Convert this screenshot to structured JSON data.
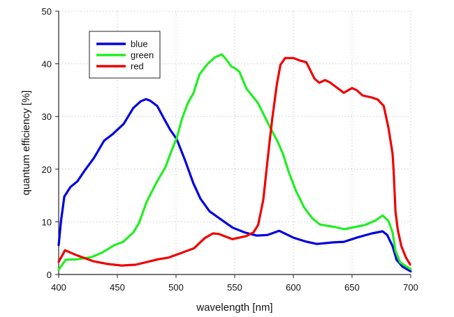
{
  "chart_data": {
    "type": "line",
    "title": "",
    "xlabel": "wavelength [nm]",
    "ylabel": "quantum efficiency [%]",
    "xlim": [
      400,
      700
    ],
    "ylim": [
      0,
      50
    ],
    "xticks": [
      400,
      450,
      500,
      550,
      600,
      650,
      700
    ],
    "yticks": [
      0,
      10,
      20,
      30,
      40,
      50
    ],
    "grid": true,
    "legend_position": "top-left",
    "series": [
      {
        "name": "blue",
        "color": "#0000e0",
        "points": [
          [
            400,
            5.6
          ],
          [
            402,
            10.2
          ],
          [
            404.8,
            14.8
          ],
          [
            410,
            16.6
          ],
          [
            416,
            17.7
          ],
          [
            422,
            19.7
          ],
          [
            430,
            22.1
          ],
          [
            438.7,
            25.4
          ],
          [
            445.8,
            26.6
          ],
          [
            455.4,
            28.6
          ],
          [
            463.6,
            31.6
          ],
          [
            470,
            32.9
          ],
          [
            474.4,
            33.3
          ],
          [
            478,
            33.0
          ],
          [
            484,
            32.0
          ],
          [
            490,
            29.5
          ],
          [
            495,
            27.5
          ],
          [
            500.6,
            25.7
          ],
          [
            507.7,
            21.7
          ],
          [
            514.8,
            17.3
          ],
          [
            520.8,
            14.4
          ],
          [
            528.6,
            12.0
          ],
          [
            538.7,
            10.4
          ],
          [
            548.2,
            8.9
          ],
          [
            558.3,
            8.0
          ],
          [
            568.5,
            7.4
          ],
          [
            578,
            7.5
          ],
          [
            588,
            8.3
          ],
          [
            600,
            7.0
          ],
          [
            610,
            6.3
          ],
          [
            620,
            5.8
          ],
          [
            634,
            6.1
          ],
          [
            643,
            6.2
          ],
          [
            654,
            7.0
          ],
          [
            667,
            7.8
          ],
          [
            676,
            8.2
          ],
          [
            680,
            7.5
          ],
          [
            684.5,
            5.4
          ],
          [
            688,
            2.8
          ],
          [
            693,
            1.5
          ],
          [
            700,
            0.6
          ]
        ]
      },
      {
        "name": "green",
        "color": "#22ee22",
        "points": [
          [
            400,
            0.9
          ],
          [
            406,
            2.8
          ],
          [
            416,
            2.9
          ],
          [
            428,
            3.3
          ],
          [
            437.5,
            4.2
          ],
          [
            447.6,
            5.6
          ],
          [
            455,
            6.2
          ],
          [
            463.7,
            8.0
          ],
          [
            468.5,
            9.8
          ],
          [
            475,
            13.8
          ],
          [
            483,
            17.3
          ],
          [
            491,
            20.4
          ],
          [
            496,
            23.4
          ],
          [
            500.8,
            26.0
          ],
          [
            505,
            29.5
          ],
          [
            510,
            32.5
          ],
          [
            515,
            34.5
          ],
          [
            520,
            38.0
          ],
          [
            527,
            40.0
          ],
          [
            533,
            41.2
          ],
          [
            539,
            41.8
          ],
          [
            543,
            40.8
          ],
          [
            547,
            39.5
          ],
          [
            550,
            39.2
          ],
          [
            554,
            38.5
          ],
          [
            560,
            35.3
          ],
          [
            570,
            32.5
          ],
          [
            580,
            28.0
          ],
          [
            586,
            25.5
          ],
          [
            591,
            23.0
          ],
          [
            596,
            19.5
          ],
          [
            602,
            16.0
          ],
          [
            609,
            12.8
          ],
          [
            616,
            10.7
          ],
          [
            622.6,
            9.5
          ],
          [
            635.7,
            9.0
          ],
          [
            643.5,
            8.6
          ],
          [
            652,
            9.0
          ],
          [
            661,
            9.4
          ],
          [
            669.6,
            10.2
          ],
          [
            676,
            11.2
          ],
          [
            681,
            10.2
          ],
          [
            684.5,
            8.0
          ],
          [
            687,
            4.5
          ],
          [
            691,
            2.3
          ],
          [
            700,
            1.0
          ]
        ]
      },
      {
        "name": "red",
        "color": "#ee0000",
        "points": [
          [
            400,
            2.4
          ],
          [
            405.4,
            4.6
          ],
          [
            416,
            3.6
          ],
          [
            429.8,
            2.5
          ],
          [
            441.7,
            2.0
          ],
          [
            453.6,
            1.7
          ],
          [
            465.5,
            1.85
          ],
          [
            475.6,
            2.4
          ],
          [
            485,
            2.9
          ],
          [
            493.5,
            3.2
          ],
          [
            501,
            3.8
          ],
          [
            515.5,
            5.0
          ],
          [
            524.4,
            6.9
          ],
          [
            531.5,
            7.8
          ],
          [
            536.3,
            7.7
          ],
          [
            548,
            6.7
          ],
          [
            560,
            7.3
          ],
          [
            566,
            8.0
          ],
          [
            570,
            9.4
          ],
          [
            574.4,
            14.2
          ],
          [
            577.4,
            20.4
          ],
          [
            580,
            25.7
          ],
          [
            582,
            29.6
          ],
          [
            586,
            36.2
          ],
          [
            589,
            39.8
          ],
          [
            593,
            41.1
          ],
          [
            600,
            41.1
          ],
          [
            606,
            40.6
          ],
          [
            611,
            40.3
          ],
          [
            618,
            37.2
          ],
          [
            622,
            36.4
          ],
          [
            627,
            36.9
          ],
          [
            631,
            36.5
          ],
          [
            640,
            35.0
          ],
          [
            643,
            34.5
          ],
          [
            650,
            35.4
          ],
          [
            654,
            35.0
          ],
          [
            659,
            34.0
          ],
          [
            667,
            33.6
          ],
          [
            672,
            33.2
          ],
          [
            677,
            32.0
          ],
          [
            681,
            27.9
          ],
          [
            684.5,
            23.0
          ],
          [
            685.5,
            19.7
          ],
          [
            687,
            12.0
          ],
          [
            689,
            8.5
          ],
          [
            692,
            5.4
          ],
          [
            696,
            3.2
          ],
          [
            699.5,
            1.9
          ]
        ]
      }
    ]
  }
}
